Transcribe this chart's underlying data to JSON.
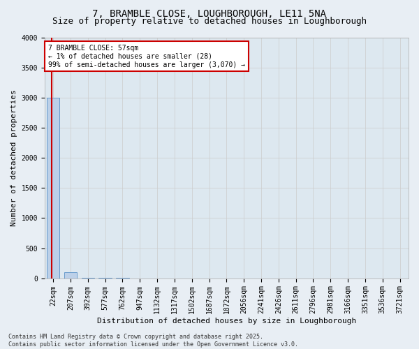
{
  "title1": "7, BRAMBLE CLOSE, LOUGHBOROUGH, LE11 5NA",
  "title2": "Size of property relative to detached houses in Loughborough",
  "xlabel": "Distribution of detached houses by size in Loughborough",
  "ylabel": "Number of detached properties",
  "categories": [
    "22sqm",
    "207sqm",
    "392sqm",
    "577sqm",
    "762sqm",
    "947sqm",
    "1132sqm",
    "1317sqm",
    "1502sqm",
    "1687sqm",
    "1872sqm",
    "2056sqm",
    "2241sqm",
    "2426sqm",
    "2611sqm",
    "2796sqm",
    "2981sqm",
    "3166sqm",
    "3351sqm",
    "3536sqm",
    "3721sqm"
  ],
  "values": [
    3000,
    100,
    5,
    3,
    2,
    1,
    1,
    1,
    1,
    1,
    1,
    1,
    1,
    1,
    1,
    1,
    1,
    1,
    1,
    1,
    0
  ],
  "bar_color": "#bcd0e8",
  "bar_edge_color": "#6699cc",
  "annotation_line1": "7 BRAMBLE CLOSE: 57sqm",
  "annotation_line2": "← 1% of detached houses are smaller (28)",
  "annotation_line3": "99% of semi-detached houses are larger (3,070) →",
  "annotation_box_color": "#ffffff",
  "annotation_box_edge": "#cc0000",
  "vline_x": -0.08,
  "vline_color": "#cc0000",
  "ylim": [
    0,
    4000
  ],
  "yticks": [
    0,
    500,
    1000,
    1500,
    2000,
    2500,
    3000,
    3500,
    4000
  ],
  "grid_color": "#cccccc",
  "bg_color": "#dde8f0",
  "fig_color": "#e8eef4",
  "footer1": "Contains HM Land Registry data © Crown copyright and database right 2025.",
  "footer2": "Contains public sector information licensed under the Open Government Licence v3.0.",
  "title_fontsize": 10,
  "subtitle_fontsize": 9,
  "axis_label_fontsize": 8,
  "tick_fontsize": 7,
  "footer_fontsize": 6
}
